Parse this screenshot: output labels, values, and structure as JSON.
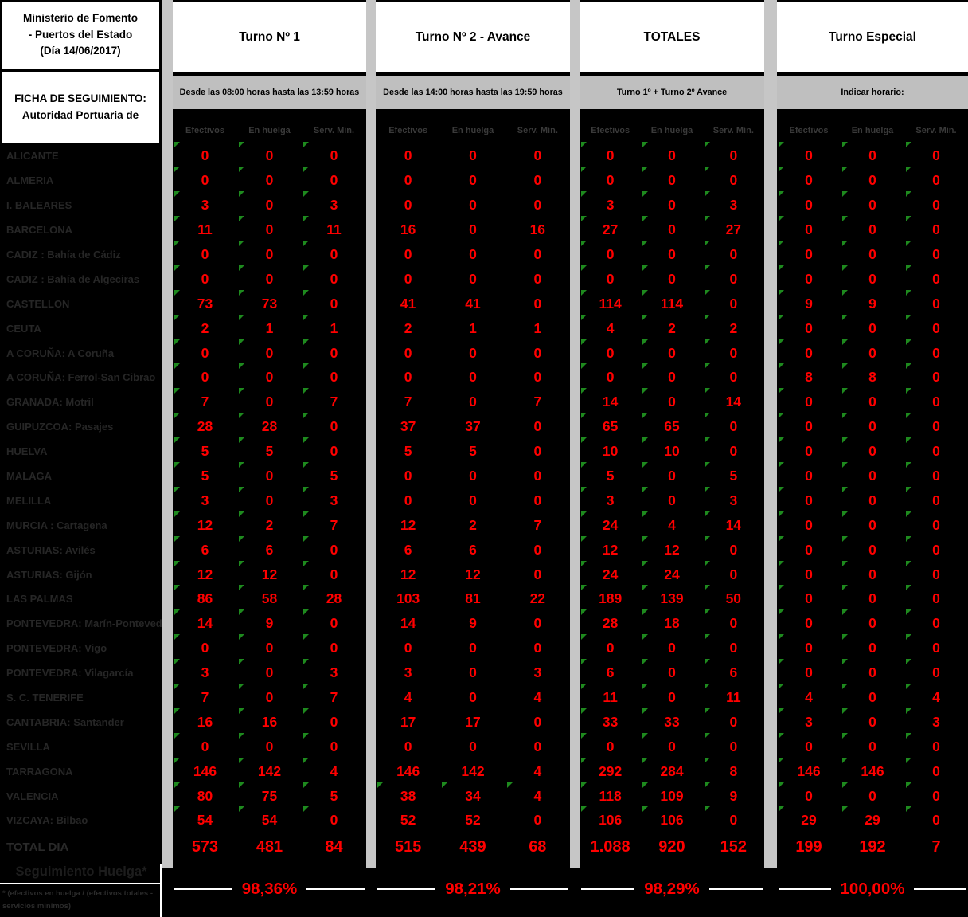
{
  "header": {
    "ministry": "Ministerio de Fomento - Puertos del Estado (Día 14/06/2017)",
    "sheet": "FICHA DE SEGUIMIENTO: Autoridad Portuaria de"
  },
  "columns": [
    "Efectivos",
    "En huelga",
    "Serv. Mín."
  ],
  "groups": [
    {
      "title": "Turno Nº 1",
      "subtitle": "Desde las 08:00 horas hasta las 13:59 horas",
      "totals": [
        "573",
        "481",
        "84"
      ],
      "pct": "98,36%",
      "comment_rows": "all"
    },
    {
      "title": "Turno Nº 2 - Avance",
      "subtitle": "Desde las 14:00 horas hasta las 19:59 horas",
      "totals": [
        "515",
        "439",
        "68"
      ],
      "pct": "98,21%",
      "comment_rows": [
        26
      ]
    },
    {
      "title": "TOTALES",
      "subtitle": "Turno 1º + Turno 2º Avance",
      "totals": [
        "1.088",
        "920",
        "152"
      ],
      "pct": "98,29%",
      "comment_rows": "all"
    },
    {
      "title": "Turno Especial",
      "subtitle": "Indicar horario:",
      "totals": [
        "199",
        "192",
        "7"
      ],
      "pct": "100,00%",
      "comment_rows": "all"
    }
  ],
  "rows": [
    {
      "label": "ALICANTE",
      "values": [
        [
          0,
          0,
          0
        ],
        [
          0,
          0,
          0
        ],
        [
          0,
          0,
          0
        ],
        [
          0,
          0,
          0
        ]
      ]
    },
    {
      "label": "ALMERIA",
      "values": [
        [
          0,
          0,
          0
        ],
        [
          0,
          0,
          0
        ],
        [
          0,
          0,
          0
        ],
        [
          0,
          0,
          0
        ]
      ]
    },
    {
      "label": "I. BALEARES",
      "values": [
        [
          3,
          0,
          3
        ],
        [
          0,
          0,
          0
        ],
        [
          3,
          0,
          3
        ],
        [
          0,
          0,
          0
        ]
      ]
    },
    {
      "label": "BARCELONA",
      "values": [
        [
          11,
          0,
          11
        ],
        [
          16,
          0,
          16
        ],
        [
          27,
          0,
          27
        ],
        [
          0,
          0,
          0
        ]
      ]
    },
    {
      "label": "CADIZ : Bahía de Cádiz",
      "values": [
        [
          0,
          0,
          0
        ],
        [
          0,
          0,
          0
        ],
        [
          0,
          0,
          0
        ],
        [
          0,
          0,
          0
        ]
      ]
    },
    {
      "label": "CADIZ : Bahía de Algeciras",
      "values": [
        [
          0,
          0,
          0
        ],
        [
          0,
          0,
          0
        ],
        [
          0,
          0,
          0
        ],
        [
          0,
          0,
          0
        ]
      ]
    },
    {
      "label": "CASTELLON",
      "values": [
        [
          73,
          73,
          0
        ],
        [
          41,
          41,
          0
        ],
        [
          114,
          114,
          0
        ],
        [
          9,
          9,
          0
        ]
      ]
    },
    {
      "label": "CEUTA",
      "values": [
        [
          2,
          1,
          1
        ],
        [
          2,
          1,
          1
        ],
        [
          4,
          2,
          2
        ],
        [
          0,
          0,
          0
        ]
      ]
    },
    {
      "label": "A CORUÑA: A Coruña",
      "values": [
        [
          0,
          0,
          0
        ],
        [
          0,
          0,
          0
        ],
        [
          0,
          0,
          0
        ],
        [
          0,
          0,
          0
        ]
      ]
    },
    {
      "label": "A CORUÑA: Ferrol-San Cibrao",
      "values": [
        [
          0,
          0,
          0
        ],
        [
          0,
          0,
          0
        ],
        [
          0,
          0,
          0
        ],
        [
          8,
          8,
          0
        ]
      ]
    },
    {
      "label": "GRANADA: Motril",
      "values": [
        [
          7,
          0,
          7
        ],
        [
          7,
          0,
          7
        ],
        [
          14,
          0,
          14
        ],
        [
          0,
          0,
          0
        ]
      ]
    },
    {
      "label": "GUIPUZCOA: Pasajes",
      "values": [
        [
          28,
          28,
          0
        ],
        [
          37,
          37,
          0
        ],
        [
          65,
          65,
          0
        ],
        [
          0,
          0,
          0
        ]
      ]
    },
    {
      "label": "HUELVA",
      "values": [
        [
          5,
          5,
          0
        ],
        [
          5,
          5,
          0
        ],
        [
          10,
          10,
          0
        ],
        [
          0,
          0,
          0
        ]
      ]
    },
    {
      "label": "MALAGA",
      "values": [
        [
          5,
          0,
          5
        ],
        [
          0,
          0,
          0
        ],
        [
          5,
          0,
          5
        ],
        [
          0,
          0,
          0
        ]
      ]
    },
    {
      "label": "MELILLA",
      "values": [
        [
          3,
          0,
          3
        ],
        [
          0,
          0,
          0
        ],
        [
          3,
          0,
          3
        ],
        [
          0,
          0,
          0
        ]
      ]
    },
    {
      "label": "MURCIA : Cartagena",
      "values": [
        [
          12,
          2,
          7
        ],
        [
          12,
          2,
          7
        ],
        [
          24,
          4,
          14
        ],
        [
          0,
          0,
          0
        ]
      ]
    },
    {
      "label": "ASTURIAS: Avilés",
      "values": [
        [
          6,
          6,
          0
        ],
        [
          6,
          6,
          0
        ],
        [
          12,
          12,
          0
        ],
        [
          0,
          0,
          0
        ]
      ]
    },
    {
      "label": "ASTURIAS: Gijón",
      "values": [
        [
          12,
          12,
          0
        ],
        [
          12,
          12,
          0
        ],
        [
          24,
          24,
          0
        ],
        [
          0,
          0,
          0
        ]
      ]
    },
    {
      "label": "LAS PALMAS",
      "values": [
        [
          86,
          58,
          28
        ],
        [
          103,
          81,
          22
        ],
        [
          189,
          139,
          50
        ],
        [
          0,
          0,
          0
        ]
      ]
    },
    {
      "label": "PONTEVEDRA: Marín-Pontevedra",
      "values": [
        [
          14,
          9,
          0
        ],
        [
          14,
          9,
          0
        ],
        [
          28,
          18,
          0
        ],
        [
          0,
          0,
          0
        ]
      ]
    },
    {
      "label": "PONTEVEDRA: Vigo",
      "values": [
        [
          0,
          0,
          0
        ],
        [
          0,
          0,
          0
        ],
        [
          0,
          0,
          0
        ],
        [
          0,
          0,
          0
        ]
      ]
    },
    {
      "label": "PONTEVEDRA: Vilagarcía",
      "values": [
        [
          3,
          0,
          3
        ],
        [
          3,
          0,
          3
        ],
        [
          6,
          0,
          6
        ],
        [
          0,
          0,
          0
        ]
      ]
    },
    {
      "label": "S. C. TENERIFE",
      "values": [
        [
          7,
          0,
          7
        ],
        [
          4,
          0,
          4
        ],
        [
          11,
          0,
          11
        ],
        [
          4,
          0,
          4
        ]
      ]
    },
    {
      "label": "CANTABRIA: Santander",
      "values": [
        [
          16,
          16,
          0
        ],
        [
          17,
          17,
          0
        ],
        [
          33,
          33,
          0
        ],
        [
          3,
          0,
          3
        ]
      ]
    },
    {
      "label": "SEVILLA",
      "values": [
        [
          0,
          0,
          0
        ],
        [
          0,
          0,
          0
        ],
        [
          0,
          0,
          0
        ],
        [
          0,
          0,
          0
        ]
      ]
    },
    {
      "label": "TARRAGONA",
      "values": [
        [
          146,
          142,
          4
        ],
        [
          146,
          142,
          4
        ],
        [
          292,
          284,
          8
        ],
        [
          146,
          146,
          0
        ]
      ]
    },
    {
      "label": "VALENCIA",
      "values": [
        [
          80,
          75,
          5
        ],
        [
          38,
          34,
          4
        ],
        [
          118,
          109,
          9
        ],
        [
          0,
          0,
          0
        ]
      ]
    },
    {
      "label": "VIZCAYA: Bilbao",
      "values": [
        [
          54,
          54,
          0
        ],
        [
          52,
          52,
          0
        ],
        [
          106,
          106,
          0
        ],
        [
          29,
          29,
          0
        ]
      ]
    }
  ],
  "footer": {
    "total_label": "TOTAL DIA",
    "seguimiento": "Seguimiento Huelga*",
    "footnote": "* (efectivos en huelga / (efectivos totales - servicios mínimos)"
  },
  "colors": {
    "value_red": "#ff0000",
    "flag_green": "#1e8a1e",
    "separator_gray": "#c6c6c6",
    "band_gray": "#bfbfbf"
  }
}
